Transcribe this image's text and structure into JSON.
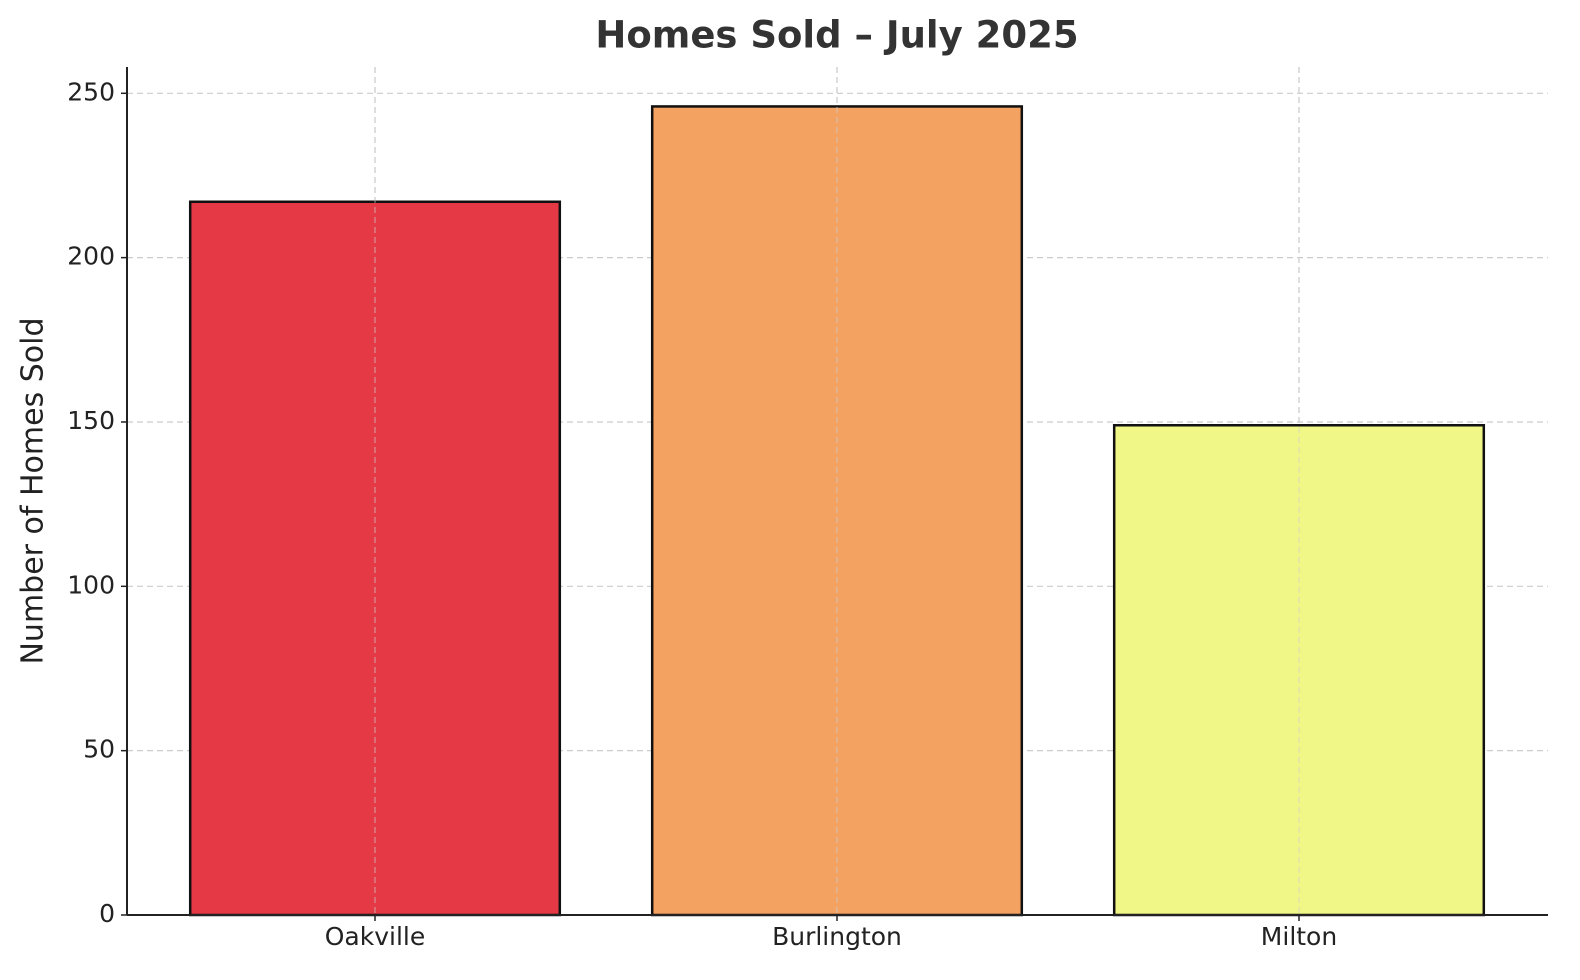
{
  "chart_data": {
    "type": "bar",
    "title": "Homes Sold – July 2025",
    "y_label": "Number of Homes Sold",
    "categories": [
      "Oakville",
      "Burlington",
      "Milton"
    ],
    "values": [
      217,
      246,
      149
    ],
    "colors": [
      "#e63946",
      "#f4a261",
      "#f1f787"
    ],
    "ylim": [
      0,
      258
    ],
    "yticks": [
      0,
      50,
      100,
      150,
      200,
      250
    ],
    "grid": true
  }
}
